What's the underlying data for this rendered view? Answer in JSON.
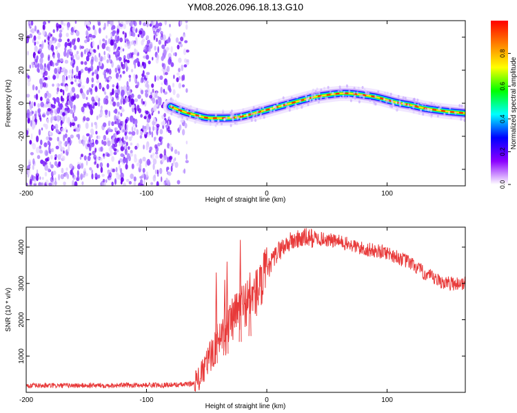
{
  "title": "YM08.2026.096.18.13.G10",
  "chart_data": [
    {
      "type": "heatmap",
      "xlabel": "Height of straight line (km)",
      "ylabel": "Frequency (Hz)",
      "xlim": [
        -200,
        165
      ],
      "ylim": [
        -50,
        50
      ],
      "xticks": [
        -200,
        -100,
        0,
        100
      ],
      "yticks": [
        -40,
        -20,
        0,
        20,
        40
      ],
      "ridge": {
        "x": [
          -80,
          -70,
          -60,
          -50,
          -40,
          -30,
          -20,
          -10,
          0,
          10,
          20,
          30,
          40,
          50,
          60,
          70,
          80,
          90,
          100,
          110,
          120,
          130,
          140,
          150,
          165
        ],
        "freq": [
          -2,
          -5,
          -7,
          -9,
          -9,
          -9,
          -8,
          -6,
          -4,
          -2,
          0,
          2,
          4,
          5,
          6,
          6,
          5,
          4,
          2,
          0,
          -1,
          -3,
          -4,
          -5,
          -6
        ]
      },
      "noise_region_x": [
        -200,
        -80
      ],
      "colorbar": {
        "label": "Normalized spectral amplitude",
        "range": [
          0,
          1
        ],
        "ticks": [
          "0.0",
          "0.2",
          "0.4",
          "0.6",
          "0.8"
        ],
        "tick_values": [
          0,
          0.2,
          0.4,
          0.6,
          0.8
        ],
        "colors": [
          "#ffffff",
          "#8b00ff",
          "#0000ff",
          "#00ffff",
          "#00ff00",
          "#ffff00",
          "#ff8000",
          "#ff0000"
        ]
      }
    },
    {
      "type": "line",
      "xlabel": "Height of straight line (km)",
      "ylabel": "SNR (10 * v/v)",
      "xlim": [
        -200,
        165
      ],
      "ylim": [
        0,
        4550
      ],
      "xticks": [
        -200,
        -100,
        0,
        100
      ],
      "yticks": [
        1000,
        2000,
        3000,
        4000
      ],
      "series": [
        {
          "name": "SNR",
          "color": "#e83a3a",
          "x": [
            -200,
            -150,
            -100,
            -70,
            -60,
            -55,
            -50,
            -45,
            -40,
            -35,
            -30,
            -25,
            -20,
            -15,
            -10,
            -5,
            0,
            5,
            10,
            15,
            20,
            25,
            30,
            40,
            50,
            60,
            70,
            80,
            90,
            100,
            110,
            120,
            130,
            140,
            150,
            165
          ],
          "y": [
            180,
            190,
            200,
            210,
            250,
            420,
            800,
            1100,
            1500,
            1700,
            1900,
            2200,
            2400,
            2550,
            2700,
            2900,
            3300,
            3650,
            3900,
            4050,
            4150,
            4200,
            4250,
            4250,
            4200,
            4150,
            4050,
            3950,
            3900,
            3850,
            3700,
            3550,
            3300,
            3100,
            3000,
            3000
          ],
          "spikes": [
            {
              "x": -42,
              "y": 3300
            },
            {
              "x": -35,
              "y": 3100
            },
            {
              "x": -33,
              "y": 3600
            },
            {
              "x": -22,
              "y": 4200
            },
            {
              "x": -14,
              "y": 3300
            }
          ]
        }
      ]
    }
  ]
}
